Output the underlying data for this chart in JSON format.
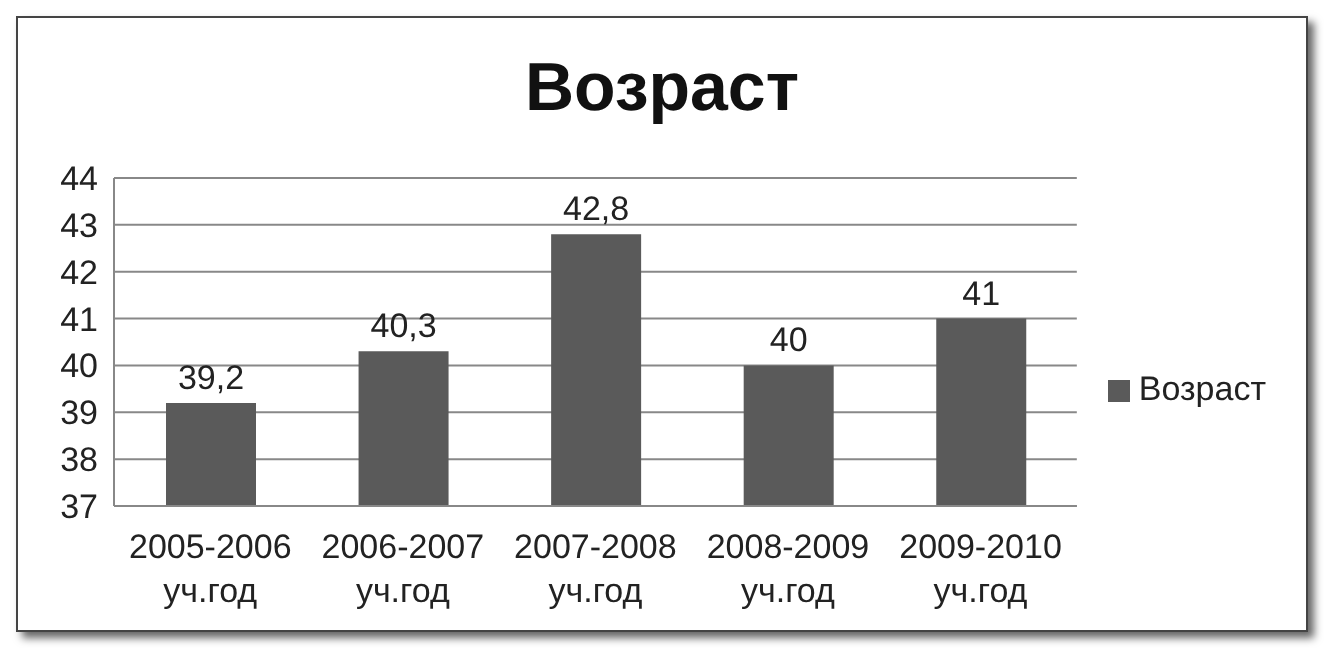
{
  "chart_data": {
    "type": "bar",
    "title": "Возраст",
    "categories": [
      "2005-2006\nуч.год",
      "2006-2007\nуч.год",
      "2007-2008\nуч.год",
      "2008-2009\nуч.год",
      "2009-2010\nуч.год"
    ],
    "series": [
      {
        "name": "Возраст",
        "color": "#5a5a5a",
        "values": [
          39.2,
          40.3,
          42.8,
          40,
          41
        ],
        "value_labels": [
          "39,2",
          "40,3",
          "42,8",
          "40",
          "41"
        ]
      }
    ],
    "ylim": [
      37,
      44
    ],
    "yticks": [
      37,
      38,
      39,
      40,
      41,
      42,
      43,
      44
    ],
    "grid": "y",
    "legend": "right"
  }
}
